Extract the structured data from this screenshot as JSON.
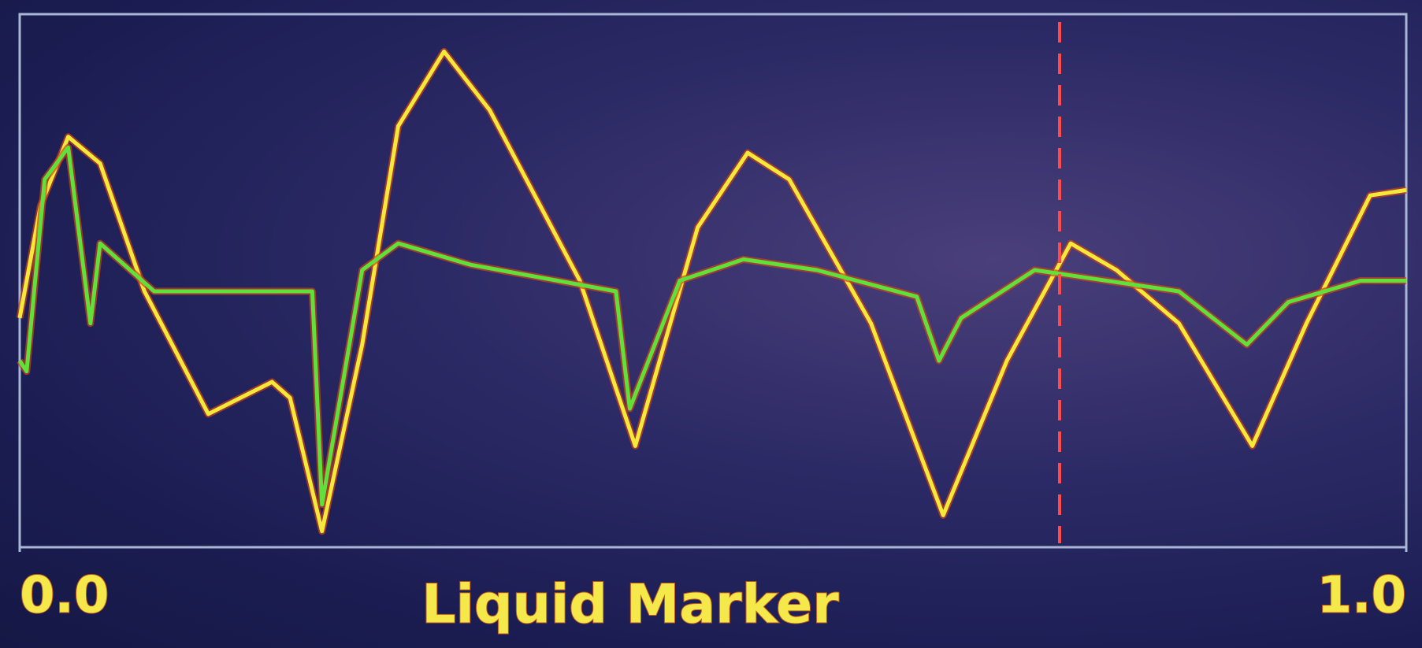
{
  "chart_data": {
    "type": "line",
    "xlabel": "Liquid Marker",
    "xlim": [
      0,
      1
    ],
    "ylim": [
      0,
      1
    ],
    "xticks": [
      {
        "value": 0,
        "label": "0.0"
      },
      {
        "value": 1,
        "label": "1.0"
      }
    ],
    "marker_x": 0.75,
    "marker_color": "#ff4a4a",
    "frame_color": "#a9b6d6",
    "series": [
      {
        "color": "#f2e93a",
        "x": [
          0,
          0.015,
          0.035,
          0.058,
          0.09,
          0.136,
          0.182,
          0.195,
          0.218,
          0.247,
          0.273,
          0.306,
          0.339,
          0.404,
          0.444,
          0.489,
          0.525,
          0.555,
          0.614,
          0.666,
          0.712,
          0.758,
          0.791,
          0.836,
          0.889,
          0.928,
          0.974,
          1
        ],
        "values": [
          0.43,
          0.64,
          0.77,
          0.72,
          0.48,
          0.25,
          0.31,
          0.28,
          0.03,
          0.38,
          0.79,
          0.93,
          0.82,
          0.5,
          0.19,
          0.6,
          0.74,
          0.69,
          0.42,
          0.06,
          0.35,
          0.57,
          0.52,
          0.42,
          0.19,
          0.42,
          0.66,
          0.67
        ]
      },
      {
        "color": "#5fe03a",
        "x": [
          0,
          0.005,
          0.018,
          0.035,
          0.051,
          0.058,
          0.097,
          0.136,
          0.211,
          0.218,
          0.247,
          0.273,
          0.325,
          0.43,
          0.44,
          0.476,
          0.522,
          0.575,
          0.647,
          0.663,
          0.679,
          0.732,
          0.836,
          0.885,
          0.915,
          0.967,
          1
        ],
        "values": [
          0.35,
          0.33,
          0.69,
          0.75,
          0.42,
          0.57,
          0.48,
          0.48,
          0.48,
          0.08,
          0.52,
          0.57,
          0.53,
          0.48,
          0.26,
          0.5,
          0.54,
          0.52,
          0.47,
          0.35,
          0.43,
          0.52,
          0.48,
          0.38,
          0.46,
          0.5,
          0.5
        ]
      }
    ]
  }
}
